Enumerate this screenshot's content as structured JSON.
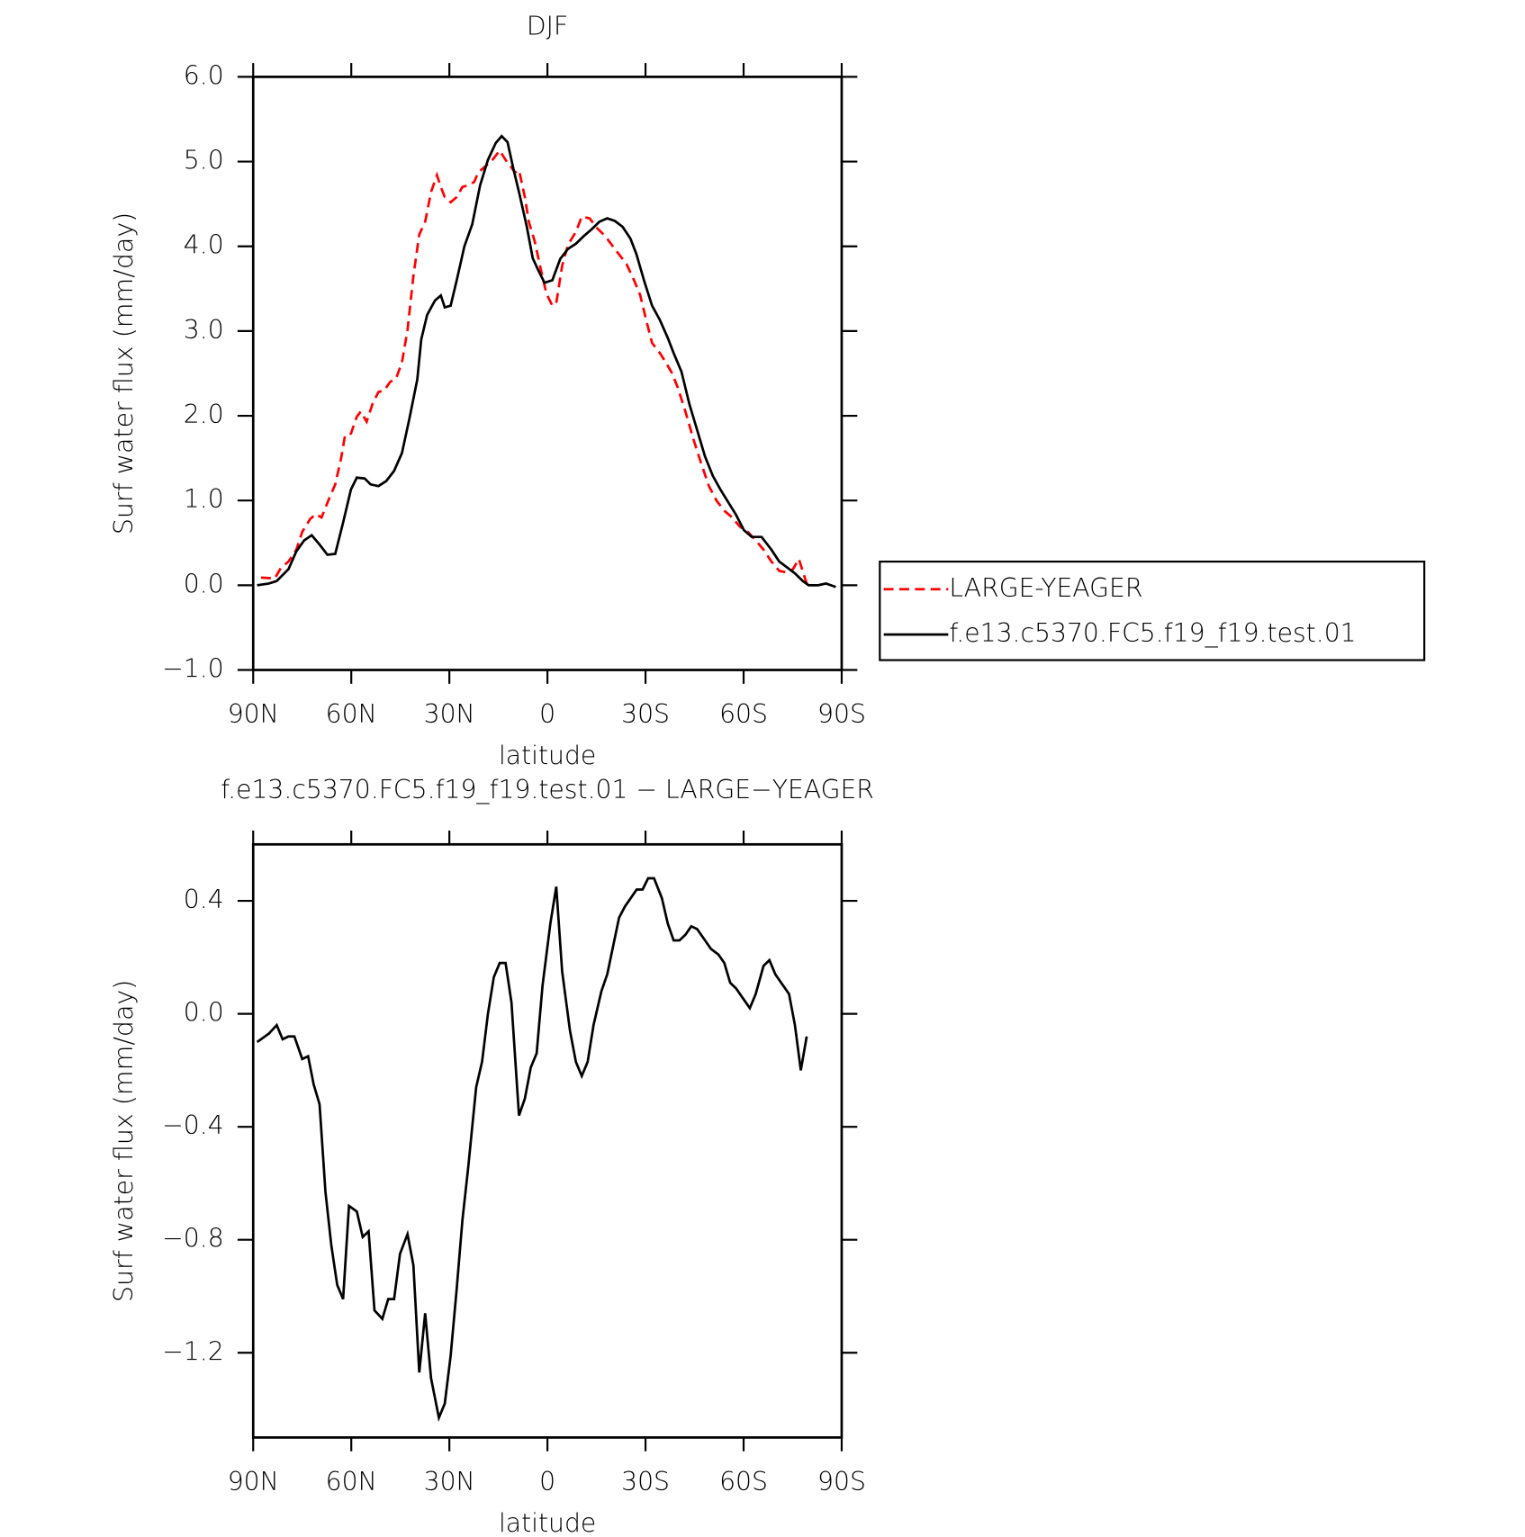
{
  "chart_data": [
    {
      "type": "line",
      "title": "DJF",
      "x_label": "latitude",
      "y_label": "Surf water flux (mm/day)",
      "xlim": [
        90,
        -90
      ],
      "xticks": [
        {
          "value": 90,
          "label": "90N"
        },
        {
          "value": 60,
          "label": "60N"
        },
        {
          "value": 30,
          "label": "30N"
        },
        0,
        {
          "value": -30,
          "label": "30S"
        },
        {
          "value": -60,
          "label": "60S"
        },
        {
          "value": -90,
          "label": "90S"
        }
      ],
      "ylim": [
        -1,
        6
      ],
      "yticks": [
        {
          "value": -1,
          "label": "−1.0"
        },
        {
          "value": 0,
          "label": "0.0"
        },
        {
          "value": 1,
          "label": "1.0"
        },
        {
          "value": 2,
          "label": "2.0"
        },
        {
          "value": 3,
          "label": "3.0"
        },
        {
          "value": 4,
          "label": "4.0"
        },
        {
          "value": 5,
          "label": "5.0"
        },
        {
          "value": 6,
          "label": "6.0"
        }
      ],
      "legend": "right",
      "series": [
        {
          "name": "LARGE-YEAGER",
          "color": "#ff0000",
          "dash": true,
          "x": [
            87.6,
            83.4,
            81.6,
            79.2,
            76.8,
            75.0,
            72.6,
            70.9,
            69.1,
            66.7,
            64.9,
            63.1,
            61.9,
            60.1,
            58.3,
            57.1,
            55.3,
            53.5,
            51.7,
            49.9,
            48.1,
            46.3,
            44.5,
            42.8,
            41.0,
            39.2,
            37.4,
            35.6,
            33.8,
            32.6,
            31.4,
            29.6,
            27.8,
            26.0,
            24.2,
            22.4,
            21.2,
            19.4,
            17.0,
            14.6,
            12.8,
            11.0,
            9.9,
            8.7,
            6.9,
            5.7,
            3.9,
            2.1,
            0.3,
            -1.5,
            -2.7,
            -4.5,
            -6.3,
            -8.7,
            -10.5,
            -12.9,
            -15.3,
            -17.7,
            -20.0,
            -21.8,
            -24.2,
            -26.6,
            -28.4,
            -30.2,
            -32.0,
            -34.4,
            -36.2,
            -38.0,
            -39.8,
            -42.2,
            -44.6,
            -47.0,
            -49.4,
            -51.7,
            -54.1,
            -56.5,
            -58.9,
            -61.3,
            -63.7,
            -66.1,
            -68.5,
            -70.9,
            -73.3,
            -75.1,
            -76.9,
            -79.3
          ],
          "values": [
            0.09,
            0.08,
            0.2,
            0.28,
            0.42,
            0.63,
            0.78,
            0.84,
            0.8,
            1.03,
            1.19,
            1.5,
            1.77,
            1.79,
            1.99,
            2.05,
            1.93,
            2.14,
            2.28,
            2.3,
            2.4,
            2.44,
            2.63,
            3.01,
            3.65,
            4.14,
            4.29,
            4.64,
            4.84,
            4.7,
            4.58,
            4.52,
            4.58,
            4.7,
            4.72,
            4.76,
            4.87,
            4.93,
            5.01,
            5.13,
            5.02,
            4.93,
            4.87,
            4.9,
            4.58,
            4.29,
            4.06,
            3.74,
            3.44,
            3.3,
            3.33,
            3.77,
            4.02,
            4.17,
            4.35,
            4.33,
            4.21,
            4.12,
            4.0,
            3.91,
            3.79,
            3.59,
            3.42,
            3.13,
            2.86,
            2.74,
            2.63,
            2.51,
            2.34,
            2.05,
            1.73,
            1.44,
            1.17,
            1.0,
            0.88,
            0.8,
            0.69,
            0.63,
            0.53,
            0.42,
            0.28,
            0.17,
            0.15,
            0.19,
            0.31,
            0.02
          ]
        },
        {
          "name": "f.e13.c5370.FC5.f19_f19.test.01",
          "color": "#000000",
          "dash": false,
          "x": [
            88.8,
            85.2,
            82.8,
            79.2,
            76.8,
            74.4,
            72.1,
            69.7,
            67.3,
            64.9,
            62.5,
            60.1,
            58.3,
            55.9,
            54.1,
            51.7,
            49.3,
            46.9,
            44.5,
            42.2,
            39.8,
            38.6,
            36.8,
            34.4,
            32.6,
            31.4,
            29.6,
            27.8,
            25.4,
            23.0,
            20.6,
            18.2,
            15.8,
            14.0,
            12.2,
            10.5,
            8.7,
            6.3,
            4.5,
            2.7,
            0.9,
            -1.5,
            -3.9,
            -6.3,
            -8.7,
            -11.1,
            -13.5,
            -15.9,
            -18.3,
            -20.6,
            -23.0,
            -25.4,
            -27.2,
            -29.6,
            -32.0,
            -34.4,
            -36.8,
            -38.6,
            -41.0,
            -43.4,
            -45.8,
            -48.2,
            -50.6,
            -52.9,
            -55.3,
            -57.7,
            -60.1,
            -62.5,
            -65.5,
            -68.5,
            -70.9,
            -73.3,
            -75.7,
            -78.1,
            -79.9,
            -82.8,
            -85.2,
            -88.2
          ],
          "values": [
            0.0,
            0.02,
            0.05,
            0.19,
            0.4,
            0.53,
            0.59,
            0.48,
            0.36,
            0.37,
            0.74,
            1.13,
            1.27,
            1.26,
            1.19,
            1.17,
            1.23,
            1.35,
            1.56,
            1.97,
            2.43,
            2.9,
            3.19,
            3.36,
            3.42,
            3.28,
            3.3,
            3.59,
            4.0,
            4.26,
            4.72,
            5.02,
            5.22,
            5.3,
            5.23,
            4.93,
            4.64,
            4.23,
            3.86,
            3.71,
            3.57,
            3.6,
            3.85,
            3.97,
            4.03,
            4.12,
            4.2,
            4.29,
            4.33,
            4.3,
            4.23,
            4.09,
            3.91,
            3.59,
            3.3,
            3.13,
            2.92,
            2.74,
            2.52,
            2.14,
            1.83,
            1.52,
            1.29,
            1.13,
            0.98,
            0.83,
            0.65,
            0.57,
            0.57,
            0.42,
            0.28,
            0.21,
            0.14,
            0.05,
            0.0,
            0.0,
            0.02,
            -0.02
          ]
        }
      ]
    },
    {
      "type": "line",
      "title": "f.e13.c5370.FC5.f19_f19.test.01 − LARGE−YEAGER",
      "x_label": "latitude",
      "y_label": "Surf water flux (mm/day)",
      "xlim": [
        90,
        -90
      ],
      "xticks": [
        {
          "value": 90,
          "label": "90N"
        },
        {
          "value": 60,
          "label": "60N"
        },
        {
          "value": 30,
          "label": "30N"
        },
        0,
        {
          "value": -30,
          "label": "30S"
        },
        {
          "value": -60,
          "label": "60S"
        },
        {
          "value": -90,
          "label": "90S"
        }
      ],
      "ylim": [
        -1.5,
        0.6
      ],
      "yticks": [
        {
          "value": -1.2,
          "label": "−1.2"
        },
        {
          "value": -0.8,
          "label": "−0.8"
        },
        {
          "value": -0.4,
          "label": "−0.4"
        },
        {
          "value": 0,
          "label": "0.0"
        },
        0.4
      ],
      "color": "#000000",
      "x": [
        88.8,
        85.2,
        82.8,
        81.0,
        79.2,
        77.4,
        75.0,
        73.2,
        71.5,
        69.7,
        67.9,
        66.1,
        64.3,
        62.5,
        60.7,
        58.3,
        56.5,
        54.7,
        52.9,
        50.5,
        48.7,
        46.9,
        45.1,
        42.8,
        41.0,
        39.2,
        37.4,
        35.6,
        33.2,
        31.4,
        29.6,
        27.8,
        26.0,
        24.2,
        21.8,
        20.0,
        18.2,
        16.4,
        14.6,
        12.8,
        11.0,
        8.7,
        6.9,
        5.1,
        3.3,
        1.5,
        -0.9,
        -2.7,
        -4.5,
        -6.9,
        -8.7,
        -10.5,
        -12.3,
        -14.1,
        -16.5,
        -18.3,
        -20.1,
        -21.9,
        -23.7,
        -25.5,
        -27.3,
        -29.1,
        -30.8,
        -32.6,
        -35.0,
        -36.8,
        -38.6,
        -40.4,
        -42.2,
        -44.0,
        -45.8,
        -47.6,
        -50.0,
        -52.3,
        -54.1,
        -55.9,
        -57.7,
        -59.5,
        -61.9,
        -63.7,
        -66.1,
        -67.9,
        -69.7,
        -71.5,
        -73.9,
        -75.7,
        -77.5,
        -79.3
      ],
      "values": [
        -0.1,
        -0.07,
        -0.04,
        -0.09,
        -0.08,
        -0.08,
        -0.16,
        -0.15,
        -0.25,
        -0.32,
        -0.63,
        -0.82,
        -0.96,
        -1.01,
        -0.68,
        -0.7,
        -0.79,
        -0.77,
        -1.05,
        -1.08,
        -1.01,
        -1.01,
        -0.85,
        -0.78,
        -0.89,
        -1.27,
        -1.06,
        -1.29,
        -1.43,
        -1.38,
        -1.21,
        -0.98,
        -0.73,
        -0.54,
        -0.26,
        -0.17,
        0.0,
        0.13,
        0.18,
        0.18,
        0.04,
        -0.36,
        -0.3,
        -0.19,
        -0.14,
        0.1,
        0.32,
        0.45,
        0.15,
        -0.06,
        -0.17,
        -0.22,
        -0.17,
        -0.04,
        0.08,
        0.14,
        0.24,
        0.34,
        0.38,
        0.41,
        0.44,
        0.44,
        0.48,
        0.48,
        0.41,
        0.32,
        0.26,
        0.26,
        0.28,
        0.31,
        0.3,
        0.27,
        0.23,
        0.21,
        0.18,
        0.11,
        0.09,
        0.06,
        0.02,
        0.07,
        0.17,
        0.19,
        0.14,
        0.11,
        0.07,
        -0.04,
        -0.2,
        -0.08
      ]
    }
  ]
}
